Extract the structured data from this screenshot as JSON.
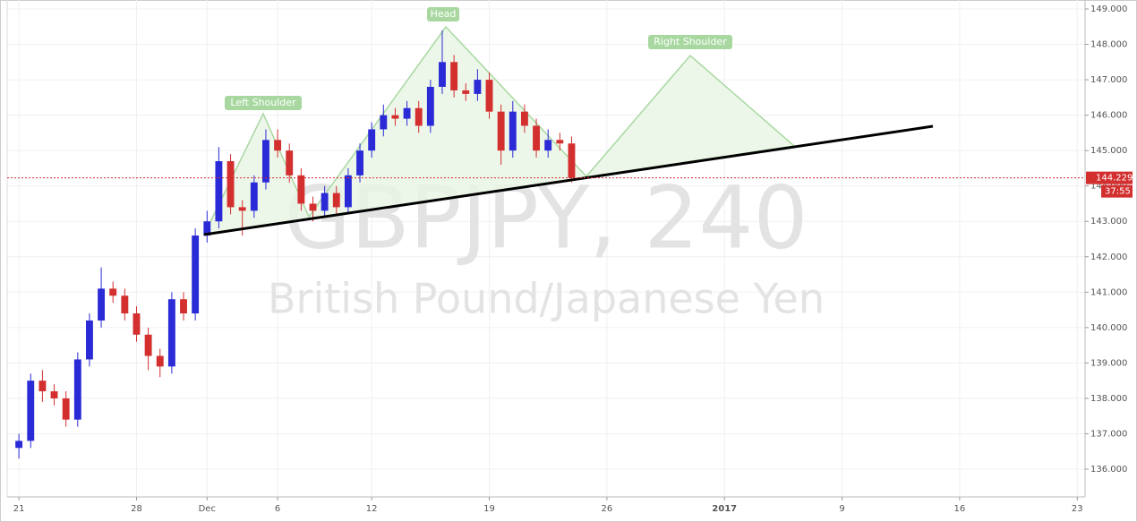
{
  "chart_data": {
    "type": "candlestick",
    "watermark_symbol": "GBPJPY, 240",
    "watermark_name": "British Pound/Japanese Yen",
    "annotations": [
      "Left Shoulder",
      "Head",
      "Right Shoulder"
    ],
    "x": [
      0,
      3,
      6,
      9,
      12,
      15,
      18,
      21,
      24,
      27,
      30,
      33,
      36,
      39,
      42,
      45,
      48,
      51,
      54,
      57,
      60,
      63,
      66,
      69,
      72,
      75,
      78,
      81,
      84,
      87,
      90,
      93,
      96,
      99,
      102,
      105,
      108,
      111,
      114,
      117,
      120,
      123,
      126,
      129,
      132,
      135,
      138,
      141
    ],
    "open": [
      136.6,
      136.8,
      138.5,
      138.2,
      138.0,
      137.4,
      139.1,
      140.2,
      141.1,
      140.9,
      140.4,
      139.8,
      139.2,
      138.9,
      140.8,
      140.4,
      142.6,
      143.0,
      144.7,
      143.4,
      143.3,
      144.1,
      145.3,
      145.0,
      144.3,
      143.5,
      143.3,
      143.8,
      143.4,
      144.3,
      145.0,
      145.6,
      146.0,
      145.9,
      146.2,
      145.7,
      146.8,
      147.5,
      146.7,
      146.6,
      147.0,
      146.1,
      145.0,
      146.1,
      145.7,
      145.0,
      145.3,
      145.2
    ],
    "high": [
      137.0,
      138.7,
      138.8,
      138.4,
      138.2,
      139.3,
      140.4,
      141.7,
      141.3,
      141.1,
      140.6,
      140.0,
      139.4,
      141.0,
      141.0,
      142.8,
      143.3,
      145.1,
      144.9,
      143.6,
      144.3,
      145.6,
      145.6,
      145.2,
      144.5,
      143.7,
      144.0,
      144.0,
      144.5,
      145.2,
      145.8,
      146.3,
      146.2,
      146.4,
      146.4,
      147.0,
      148.4,
      147.7,
      146.9,
      147.3,
      147.2,
      146.3,
      146.4,
      146.3,
      145.9,
      145.6,
      145.5,
      145.4
    ],
    "low": [
      136.3,
      136.6,
      137.9,
      137.8,
      137.2,
      137.2,
      138.9,
      140.0,
      140.7,
      140.2,
      139.6,
      138.8,
      138.6,
      138.7,
      140.2,
      140.2,
      142.4,
      142.8,
      143.2,
      142.6,
      143.1,
      143.9,
      144.8,
      144.1,
      143.3,
      143.0,
      143.1,
      143.2,
      143.2,
      144.1,
      144.8,
      145.4,
      145.7,
      145.7,
      145.5,
      145.5,
      146.6,
      146.5,
      146.4,
      146.4,
      145.9,
      144.6,
      144.8,
      145.5,
      144.8,
      144.8,
      145.0,
      144.1
    ],
    "close": [
      136.8,
      138.5,
      138.2,
      138.0,
      137.4,
      139.1,
      140.2,
      141.1,
      140.9,
      140.4,
      139.8,
      139.2,
      138.9,
      140.8,
      140.4,
      142.6,
      143.0,
      144.7,
      143.4,
      143.3,
      144.1,
      145.3,
      145.0,
      144.3,
      143.5,
      143.3,
      143.8,
      143.4,
      144.3,
      145.0,
      145.6,
      146.0,
      145.9,
      146.2,
      145.7,
      146.8,
      147.5,
      146.7,
      146.6,
      147.0,
      146.1,
      145.0,
      146.1,
      145.7,
      145.0,
      145.3,
      145.2,
      144.229
    ],
    "up_color": "#2a2ad6",
    "down_color": "#d32f2f",
    "xlim": [
      -3,
      272
    ],
    "xticks": [
      {
        "value": 0,
        "label": "21"
      },
      {
        "value": 30,
        "label": "28"
      },
      {
        "value": 48,
        "label": "Dec"
      },
      {
        "value": 66,
        "label": "6"
      },
      {
        "value": 90,
        "label": "12"
      },
      {
        "value": 120,
        "label": "19"
      },
      {
        "value": 150,
        "label": "26"
      },
      {
        "value": 180,
        "label": "2017"
      },
      {
        "value": 210,
        "label": "9"
      },
      {
        "value": 240,
        "label": "16"
      },
      {
        "value": 270,
        "label": "23"
      }
    ],
    "ylim": [
      135.216,
      149.253
    ],
    "yticks": [
      {
        "value": 136,
        "label": "136.000"
      },
      {
        "value": 137,
        "label": "137.000"
      },
      {
        "value": 138,
        "label": "138.000"
      },
      {
        "value": 139,
        "label": "139.000"
      },
      {
        "value": 140,
        "label": "140.000"
      },
      {
        "value": 141,
        "label": "141.000"
      },
      {
        "value": 142,
        "label": "142.000"
      },
      {
        "value": 143,
        "label": "143.000"
      },
      {
        "value": 144,
        "label": "144.000"
      },
      {
        "value": 145,
        "label": "145.000"
      },
      {
        "value": 146,
        "label": "146.000"
      },
      {
        "value": 147,
        "label": "147.000"
      },
      {
        "value": 148,
        "label": "148.000"
      },
      {
        "value": 149,
        "label": "149.000"
      }
    ],
    "grid": true,
    "last_price": 144.229,
    "countdown": "37:55"
  }
}
